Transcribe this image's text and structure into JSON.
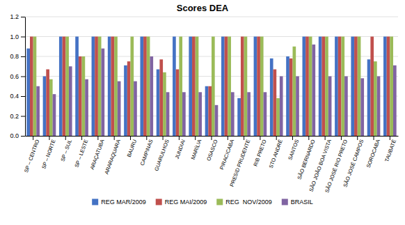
{
  "chart_data": {
    "type": "bar",
    "title": "Scores DEA",
    "categories": [
      "SP – CENTRO",
      "SP – NORTE",
      "SP – SUL",
      "SP – LESTE",
      "ARAÇATUBA",
      "ARARAQUARA",
      "BAURU",
      "CAMPINAS",
      "GUARULHOS",
      "JUNDIAI",
      "MARÍLIA",
      "OSASCO",
      "PIRACICABA",
      "PRESID PRUDENTE",
      "RIB PRETO",
      "STO ANDRÉ",
      "SANTOS",
      "SÃO BERNARDO",
      "SÃO JOÃO BOA VISTA",
      "SÃO JOSÉ RIO PRETO",
      "SÃO JOSÉ CAMPOS",
      "SOROCABA",
      "TAUBATÉ"
    ],
    "series": [
      {
        "name": "REG MAR/2009",
        "color": "#4472C4",
        "values": [
          0.88,
          0.6,
          1.0,
          1.0,
          1.0,
          1.0,
          0.71,
          1.0,
          0.67,
          1.0,
          1.0,
          0.5,
          1.0,
          0.38,
          1.0,
          0.78,
          0.8,
          1.0,
          1.0,
          1.0,
          1.0,
          0.77,
          1.0
        ]
      },
      {
        "name": "REG MAI/2009",
        "color": "#C0504D",
        "values": [
          1.0,
          0.67,
          1.0,
          0.8,
          1.0,
          1.0,
          0.75,
          1.0,
          0.77,
          0.67,
          1.0,
          0.5,
          1.0,
          1.0,
          1.0,
          0.67,
          0.78,
          1.0,
          1.0,
          1.0,
          1.0,
          1.0,
          1.0
        ]
      },
      {
        "name": "REG  NOV/2009",
        "color": "#9BBB59",
        "values": [
          1.0,
          0.57,
          1.0,
          0.8,
          1.0,
          1.0,
          1.0,
          1.0,
          0.64,
          1.0,
          1.0,
          1.0,
          1.0,
          1.0,
          1.0,
          0.38,
          0.9,
          1.0,
          1.0,
          1.0,
          1.0,
          0.75,
          1.0
        ]
      },
      {
        "name": "BRASIL",
        "color": "#8064A2",
        "values": [
          0.5,
          0.42,
          0.7,
          0.57,
          0.88,
          0.55,
          0.55,
          0.8,
          0.44,
          0.44,
          0.44,
          0.31,
          0.44,
          0.44,
          0.44,
          0.6,
          0.6,
          0.92,
          0.6,
          0.6,
          0.58,
          0.6,
          0.71
        ]
      }
    ],
    "ylim": [
      0,
      1.2
    ],
    "yticks": [
      {
        "value": 0,
        "label": "0.0"
      },
      0.2,
      0.4,
      0.6,
      0.8,
      {
        "value": 1.0,
        "label": "1.0"
      },
      1.2
    ],
    "grid": true,
    "legend": "bottom"
  }
}
